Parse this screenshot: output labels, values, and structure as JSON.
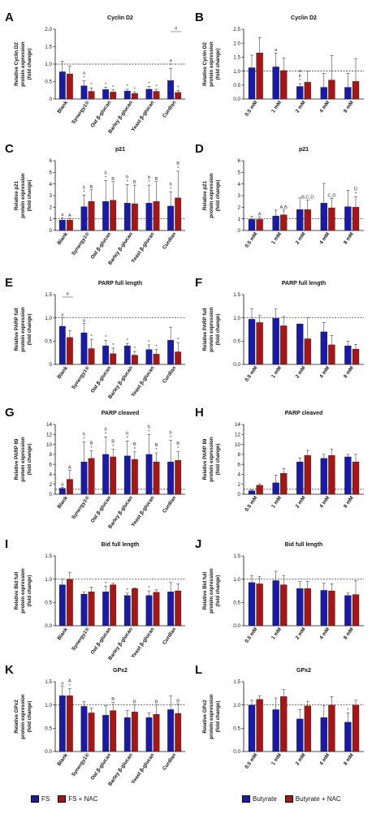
{
  "colors": {
    "blue": "#1a1aa8",
    "red": "#a51717"
  },
  "legend_left": {
    "s1": "FS",
    "s2": "FS + NAC"
  },
  "legend_right": {
    "s1": "Butyrate",
    "s2": "Butyrate + NAC"
  },
  "chart_data": [
    {
      "letter": "A",
      "type": "bar",
      "title": "Cyclin D2",
      "ylabel": [
        "Relative Cyclin D2",
        "protein expression",
        "(fold change)"
      ],
      "ylim": [
        0,
        2.0
      ],
      "ticks": [
        0,
        0.5,
        1.0,
        1.5,
        2.0
      ],
      "tick_labels": [
        "0",
        "0.5",
        "1.0",
        "1.5",
        "2.0"
      ],
      "categories": [
        "Blank",
        "Synergy1®",
        "Oat β-glucan",
        "Barley β-glucan",
        "Yeast β-glucan",
        "Curdlan"
      ],
      "series": [
        {
          "name": "FS",
          "values": [
            0.78,
            0.38,
            0.27,
            0.23,
            0.28,
            0.53
          ],
          "err": [
            0.3,
            0.14,
            0.07,
            0.05,
            0.08,
            0.35
          ]
        },
        {
          "name": "FS + NAC",
          "values": [
            0.72,
            0.22,
            0.2,
            0.16,
            0.22,
            0.19
          ],
          "err": [
            0.22,
            0.1,
            0.06,
            0.04,
            0.06,
            0.06
          ]
        }
      ],
      "labels": [
        [
          "",
          ""
        ],
        [
          "a *",
          "*"
        ],
        [
          "*",
          "*"
        ],
        [
          "*",
          "*"
        ],
        [
          "*",
          "*"
        ],
        [
          "a *",
          "*"
        ]
      ],
      "refline": 1.0,
      "bracket": {
        "from": 5,
        "label": "#"
      }
    },
    {
      "letter": "B",
      "type": "bar",
      "title": "Cyclin D2",
      "ylabel": [
        "Relative Cyclin D2",
        "protein expression",
        "(fold change)"
      ],
      "ylim": [
        0,
        2.5
      ],
      "ticks": [
        0,
        0.5,
        1.0,
        1.5,
        2.0,
        2.5
      ],
      "tick_labels": [
        "0.0",
        "0.5",
        "1.0",
        "1.5",
        "2.0",
        "2.5"
      ],
      "categories": [
        "0.5 mM",
        "1 mM",
        "2 mM",
        "4 mM",
        "8 mM"
      ],
      "series": [
        {
          "name": "Butyrate",
          "values": [
            1.12,
            1.15,
            0.45,
            0.42,
            0.42
          ],
          "err": [
            0.45,
            0.5,
            0.1,
            0.5,
            0.5
          ]
        },
        {
          "name": "Butyrate + NAC",
          "values": [
            1.65,
            1.02,
            0.6,
            0.68,
            0.63
          ],
          "err": [
            0.55,
            0.45,
            0.4,
            0.88,
            0.82
          ]
        }
      ],
      "labels": [
        [
          "",
          ""
        ],
        [
          "a",
          ""
        ],
        [
          "a b *",
          ""
        ],
        [
          "",
          ""
        ],
        [
          "",
          ""
        ]
      ],
      "refline": 1.0
    },
    {
      "letter": "C",
      "type": "bar",
      "title": "p21",
      "ylabel": [
        "Relative p21",
        "protein expression",
        "(fold change)"
      ],
      "ylim": [
        0,
        6
      ],
      "ticks": [
        0,
        1,
        2,
        3,
        4,
        5,
        6
      ],
      "tick_labels": [
        "0",
        "1",
        "2",
        "3",
        "4",
        "5",
        "6"
      ],
      "categories": [
        "Blank",
        "Synergy1®",
        "Oat β-glucan",
        "Barley β-glucan",
        "Yeast β-glucan",
        "Curdlan"
      ],
      "series": [
        {
          "name": "FS",
          "values": [
            0.9,
            2.05,
            2.5,
            2.35,
            2.35,
            2.1
          ],
          "err": [
            0.2,
            1.0,
            1.8,
            1.6,
            1.55,
            1.2
          ]
        },
        {
          "name": "FS + NAC",
          "values": [
            0.9,
            2.5,
            2.6,
            2.3,
            2.5,
            2.8
          ],
          "err": [
            0.15,
            1.0,
            1.6,
            1.6,
            1.7,
            2.3
          ]
        }
      ],
      "labels": [
        [
          "a",
          "A"
        ],
        [
          "b *",
          "B"
        ],
        [
          "b *",
          "B"
        ],
        [
          "b *",
          "B"
        ],
        [
          "b *",
          "B"
        ],
        [
          "b *",
          "B *"
        ]
      ],
      "refline": 1.0
    },
    {
      "letter": "D",
      "type": "bar",
      "title": "p21",
      "ylabel": [
        "Relative p21",
        "protein expression",
        "(fold change)"
      ],
      "ylim": [
        0,
        6
      ],
      "ticks": [
        0,
        1,
        2,
        3,
        4,
        5,
        6
      ],
      "tick_labels": [
        "0",
        "1",
        "2",
        "3",
        "4",
        "5",
        "6"
      ],
      "categories": [
        "0.5 mM",
        "1 mM",
        "2 mM",
        "4 mM",
        "8 mM"
      ],
      "series": [
        {
          "name": "Butyrate",
          "values": [
            0.95,
            1.25,
            1.8,
            2.35,
            2.05
          ],
          "err": [
            0.25,
            0.5,
            1.0,
            1.7,
            1.4
          ]
        },
        {
          "name": "Butyrate + NAC",
          "values": [
            0.95,
            1.35,
            1.8,
            1.95,
            2.0
          ],
          "err": [
            0.2,
            0.4,
            0.8,
            0.8,
            0.9
          ]
        }
      ],
      "labels": [
        [
          "",
          "A"
        ],
        [
          "",
          "A,B"
        ],
        [
          "",
          "B,C,D"
        ],
        [
          "",
          "C,D"
        ],
        [
          "",
          "D *"
        ]
      ],
      "refline": 1.0
    },
    {
      "letter": "E",
      "type": "bar",
      "title": "PARP full length",
      "ylabel": [
        "Relative PARP full",
        "protein expression",
        "(fold change)"
      ],
      "ylim": [
        0,
        1.5
      ],
      "ticks": [
        0,
        0.5,
        1.0,
        1.5
      ],
      "tick_labels": [
        "0",
        "0.5",
        "1.0",
        "1.5"
      ],
      "categories": [
        "Blank",
        "Synergy1®",
        "Oat β-glucan",
        "Barley β-glucan",
        "Yeast β-glucan",
        "Curdlan"
      ],
      "series": [
        {
          "name": "FS",
          "values": [
            0.82,
            0.68,
            0.4,
            0.4,
            0.32,
            0.52
          ],
          "err": [
            0.18,
            0.2,
            0.12,
            0.05,
            0.1,
            0.28
          ]
        },
        {
          "name": "FS + NAC",
          "values": [
            0.58,
            0.34,
            0.23,
            0.2,
            0.22,
            0.27
          ],
          "err": [
            0.15,
            0.2,
            0.12,
            0.08,
            0.1,
            0.2
          ]
        }
      ],
      "labels": [
        [
          "a",
          ""
        ],
        [
          "a",
          "*"
        ],
        [
          "*",
          "*"
        ],
        [
          "*",
          "*"
        ],
        [
          "*",
          "*"
        ],
        [
          "",
          "*"
        ]
      ],
      "refline": 1.0,
      "bracket": {
        "from": 0,
        "label": "#"
      }
    },
    {
      "letter": "F",
      "type": "bar",
      "title": "PARP full length",
      "ylabel": [
        "Relative PARP full",
        "protein expression",
        "(fold change)"
      ],
      "ylim": [
        0,
        1.5
      ],
      "ticks": [
        0,
        0.5,
        1.0,
        1.5
      ],
      "tick_labels": [
        "0.0",
        "0.5",
        "1.0",
        "1.5"
      ],
      "categories": [
        "0.5 mM",
        "1 mM",
        "2 mM",
        "4 mM",
        "8 mM"
      ],
      "series": [
        {
          "name": "Butyrate",
          "values": [
            0.97,
            0.99,
            0.87,
            0.7,
            0.4
          ],
          "err": [
            0.22,
            0.2,
            0.0,
            0.2,
            0.1
          ]
        },
        {
          "name": "Butyrate + NAC",
          "values": [
            0.9,
            0.83,
            0.55,
            0.42,
            0.33
          ],
          "err": [
            0.15,
            0.2,
            0.45,
            0.2,
            0.1
          ]
        }
      ],
      "labels": [
        [
          "",
          ""
        ],
        [
          "",
          ""
        ],
        [
          "",
          ""
        ],
        [
          "",
          ""
        ],
        [
          "",
          ""
        ]
      ],
      "refline": 1.0
    },
    {
      "letter": "G",
      "type": "bar",
      "title": "PARP cleaved",
      "ylabel": [
        "Relative PARP 89",
        "protein expression",
        "(fold change)"
      ],
      "ylim": [
        0,
        14
      ],
      "ticks": [
        0,
        2,
        4,
        6,
        8,
        10,
        12,
        14
      ],
      "tick_labels": [
        "0",
        "2",
        "4",
        "6",
        "8",
        "10",
        "12",
        "14"
      ],
      "categories": [
        "Blank",
        "Synergy1®",
        "Oat β-glucan",
        "Barley β-glucan",
        "Yeast β-glucan",
        "Curdlan"
      ],
      "series": [
        {
          "name": "FS",
          "values": [
            1.2,
            6.5,
            8.0,
            7.7,
            8.0,
            6.5
          ],
          "err": [
            0.2,
            4.0,
            3.5,
            3.0,
            4.0,
            4.3
          ]
        },
        {
          "name": "FS + NAC",
          "values": [
            3.0,
            7.2,
            7.5,
            7.0,
            6.5,
            6.8
          ],
          "err": [
            1.8,
            1.5,
            1.5,
            1.5,
            1.8,
            1.8
          ]
        }
      ],
      "labels": [
        [
          "a",
          "A"
        ],
        [
          "b *",
          "B *"
        ],
        [
          "b *",
          "B *"
        ],
        [
          "b *",
          "B *"
        ],
        [
          "b *",
          "B *"
        ],
        [
          "b *",
          "B *"
        ]
      ],
      "refline": 1.0
    },
    {
      "letter": "H",
      "type": "bar",
      "title": "PARP cleaved",
      "ylabel": [
        "Relative PARP 89",
        "protein expression",
        "(fold change)"
      ],
      "ylim": [
        0,
        14
      ],
      "ticks": [
        0,
        2,
        4,
        6,
        8,
        10,
        12,
        14
      ],
      "tick_labels": [
        "0",
        "2",
        "4",
        "6",
        "8",
        "10",
        "12",
        "14"
      ],
      "categories": [
        "0.5 mM",
        "1 mM",
        "2 mM",
        "4 mM",
        "8 mM"
      ],
      "series": [
        {
          "name": "Butyrate",
          "values": [
            0.7,
            2.3,
            6.5,
            7.2,
            7.5
          ],
          "err": [
            0.2,
            1.5,
            0.8,
            0.8,
            0.5
          ]
        },
        {
          "name": "Butyrate + NAC",
          "values": [
            1.8,
            4.2,
            7.8,
            7.8,
            6.5
          ],
          "err": [
            0.3,
            1.0,
            1.0,
            1.2,
            1.5
          ]
        }
      ],
      "labels": [
        [
          "",
          ""
        ],
        [
          "",
          ""
        ],
        [
          "",
          ""
        ],
        [
          "",
          ""
        ],
        [
          "",
          ""
        ]
      ],
      "refline": 1.0
    },
    {
      "letter": "I",
      "type": "bar",
      "title": "Bid full length",
      "ylabel": [
        "Relative Bid full",
        "protein expression",
        "(fold change)"
      ],
      "ylim": [
        0,
        1.5
      ],
      "ticks": [
        0,
        0.5,
        1.0,
        1.5
      ],
      "tick_labels": [
        "0.0",
        "0.5",
        "1.0",
        "1.5"
      ],
      "categories": [
        "Blank",
        "Synergy1®",
        "Oat β-glucan",
        "Barley β-glucan",
        "Yeast β-glucan",
        "Curdlan"
      ],
      "series": [
        {
          "name": "FS",
          "values": [
            0.88,
            0.68,
            0.73,
            0.65,
            0.65,
            0.73
          ],
          "err": [
            0.12,
            0.05,
            0.12,
            0.05,
            0.1,
            0.2
          ]
        },
        {
          "name": "FS + NAC",
          "values": [
            1.0,
            0.73,
            0.88,
            0.8,
            0.72,
            0.75
          ],
          "err": [
            0.15,
            0.1,
            0.03,
            0.01,
            0.05,
            0.15
          ]
        }
      ],
      "labels": [
        [
          "",
          ""
        ],
        [
          "",
          ""
        ],
        [
          "*",
          ""
        ],
        [
          "*",
          ""
        ],
        [
          "*",
          ""
        ],
        [
          "",
          ""
        ]
      ],
      "refline": 1.0
    },
    {
      "letter": "J",
      "type": "bar",
      "title": "Bid full length",
      "ylabel": [
        "Relative Bid full",
        "protein expression",
        "(fold change)"
      ],
      "ylim": [
        0,
        1.5
      ],
      "ticks": [
        0,
        0.5,
        1.0,
        1.5
      ],
      "tick_labels": [
        "0.0",
        "0.5",
        "1.0",
        "1.5"
      ],
      "categories": [
        "0.5 mM",
        "1 mM",
        "2 mM",
        "4 mM",
        "8 mM"
      ],
      "series": [
        {
          "name": "Butyrate",
          "values": [
            0.93,
            0.97,
            0.8,
            0.76,
            0.65
          ],
          "err": [
            0.15,
            0.2,
            0.15,
            0.15,
            0.05
          ]
        },
        {
          "name": "Butyrate + NAC",
          "values": [
            0.9,
            0.88,
            0.8,
            0.75,
            0.67
          ],
          "err": [
            0.15,
            0.2,
            0.15,
            0.15,
            0.3
          ]
        }
      ],
      "labels": [
        [
          "",
          ""
        ],
        [
          "",
          ""
        ],
        [
          "",
          ""
        ],
        [
          "",
          ""
        ],
        [
          "",
          ""
        ]
      ],
      "refline": 1.0
    },
    {
      "letter": "K",
      "type": "bar",
      "title": "GPx2",
      "ylabel": [
        "Relative GPx2",
        "protein expression",
        "(fold change)"
      ],
      "ylim": [
        0,
        1.5
      ],
      "ticks": [
        0,
        0.5,
        1.0,
        1.5
      ],
      "tick_labels": [
        "0.0",
        "0.5",
        "1.0",
        "1.5"
      ],
      "categories": [
        "Blank",
        "Synergy1®",
        "Oat β-glucan",
        "Barley β-glucan",
        "Yeast β-glucan",
        "Curdlan"
      ],
      "series": [
        {
          "name": "FS",
          "values": [
            1.2,
            0.97,
            0.78,
            0.73,
            0.73,
            0.9
          ],
          "err": [
            0.2,
            0.1,
            0.2,
            0.15,
            0.1,
            0.3
          ]
        },
        {
          "name": "FS + NAC",
          "values": [
            1.2,
            0.83,
            0.88,
            0.85,
            0.8,
            0.82
          ],
          "err": [
            0.15,
            0.1,
            0.18,
            0.15,
            0.2,
            0.2
          ]
        }
      ],
      "labels": [
        [
          "a",
          "A *"
        ],
        [
          "",
          ""
        ],
        [
          "",
          "B"
        ],
        [
          "",
          "B"
        ],
        [
          "",
          "B"
        ],
        [
          "",
          "B"
        ]
      ],
      "refline": 1.0
    },
    {
      "letter": "L",
      "type": "bar",
      "title": "GPx2",
      "ylabel": [
        "Relative GPx2",
        "protein expression",
        "(fold change)"
      ],
      "ylim": [
        0,
        1.5
      ],
      "ticks": [
        0,
        0.5,
        1.0,
        1.5
      ],
      "tick_labels": [
        "0.0",
        "0.5",
        "1.0",
        "1.5"
      ],
      "categories": [
        "0.5 mM",
        "1 mM",
        "2 mM",
        "4 mM",
        "8 mM"
      ],
      "series": [
        {
          "name": "Butyrate",
          "values": [
            1.0,
            0.9,
            0.7,
            0.73,
            0.63
          ],
          "err": [
            0.1,
            0.25,
            0.2,
            0.25,
            0.2
          ]
        },
        {
          "name": "Butyrate + NAC",
          "values": [
            1.12,
            1.18,
            0.98,
            1.0,
            1.0
          ],
          "err": [
            0.08,
            0.15,
            0.1,
            0.18,
            0.1
          ]
        }
      ],
      "labels": [
        [
          "",
          ""
        ],
        [
          "",
          ""
        ],
        [
          "",
          ""
        ],
        [
          "",
          ""
        ],
        [
          "*",
          ""
        ]
      ],
      "refline": 1.0
    }
  ]
}
